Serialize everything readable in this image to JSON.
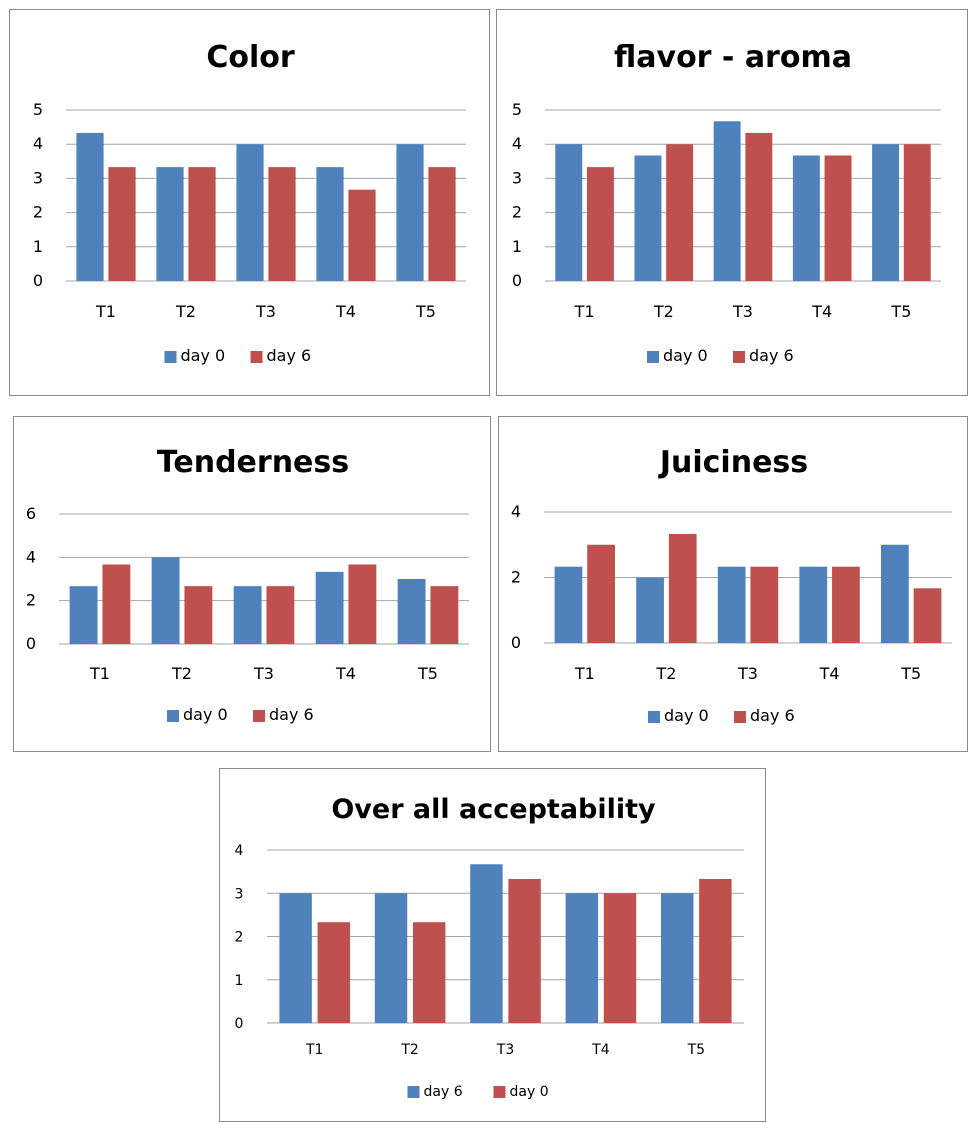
{
  "colors": {
    "blue": "#4F81BD",
    "red": "#C0504D",
    "grid": "#a6a6a6"
  },
  "chart_data": [
    {
      "type": "bar",
      "title": "Color",
      "categories": [
        "T1",
        "T2",
        "T3",
        "T4",
        "T5"
      ],
      "ylim": [
        0,
        5
      ],
      "yticks": [
        "0",
        "1",
        "2",
        "3",
        "4",
        "5"
      ],
      "grid": true,
      "legend": "bottom",
      "series": [
        {
          "name": "day 0",
          "color": "#4F81BD",
          "values": [
            4.33,
            3.33,
            4.0,
            3.33,
            4.0
          ]
        },
        {
          "name": "day 6",
          "color": "#C0504D",
          "values": [
            3.33,
            3.33,
            3.33,
            2.67,
            3.33
          ]
        }
      ]
    },
    {
      "type": "bar",
      "title": "flavor - aroma",
      "categories": [
        "T1",
        "T2",
        "T3",
        "T4",
        "T5"
      ],
      "ylim": [
        0,
        5
      ],
      "yticks": [
        "0",
        "1",
        "2",
        "3",
        "4",
        "5"
      ],
      "grid": true,
      "legend": "bottom",
      "series": [
        {
          "name": "day 0",
          "color": "#4F81BD",
          "values": [
            4.0,
            3.67,
            4.67,
            3.67,
            4.0
          ]
        },
        {
          "name": "day 6",
          "color": "#C0504D",
          "values": [
            3.33,
            4.0,
            4.33,
            3.67,
            4.0
          ]
        }
      ]
    },
    {
      "type": "bar",
      "title": "Tenderness",
      "categories": [
        "T1",
        "T2",
        "T3",
        "T4",
        "T5"
      ],
      "ylim": [
        0,
        6
      ],
      "yticks": [
        "0",
        "2",
        "4",
        "6"
      ],
      "grid": true,
      "legend": "bottom",
      "series": [
        {
          "name": "day 0",
          "color": "#4F81BD",
          "values": [
            2.67,
            4.0,
            2.67,
            3.33,
            3.0
          ]
        },
        {
          "name": "day 6",
          "color": "#C0504D",
          "values": [
            3.67,
            2.67,
            2.67,
            3.67,
            2.67
          ]
        }
      ]
    },
    {
      "type": "bar",
      "title": "Juiciness",
      "categories": [
        "T1",
        "T2",
        "T3",
        "T4",
        "T5"
      ],
      "ylim": [
        0,
        4
      ],
      "yticks": [
        "0",
        "2",
        "4"
      ],
      "grid": true,
      "legend": "bottom",
      "series": [
        {
          "name": "day 0",
          "color": "#4F81BD",
          "values": [
            2.33,
            2.0,
            2.33,
            2.33,
            3.0
          ]
        },
        {
          "name": "day 6",
          "color": "#C0504D",
          "values": [
            3.0,
            3.33,
            2.33,
            2.33,
            1.67
          ]
        }
      ]
    },
    {
      "type": "bar",
      "title": "Over all acceptability",
      "categories": [
        "T1",
        "T2",
        "T3",
        "T4",
        "T5"
      ],
      "ylim": [
        0,
        4
      ],
      "yticks": [
        "0",
        "1",
        "2",
        "3",
        "4"
      ],
      "grid": true,
      "legend": "bottom",
      "series": [
        {
          "name": "day 6",
          "color": "#4F81BD",
          "values": [
            3.0,
            3.0,
            3.67,
            3.0,
            3.0
          ]
        },
        {
          "name": "day 0",
          "color": "#C0504D",
          "values": [
            2.33,
            2.33,
            3.33,
            3.0,
            3.33
          ]
        }
      ]
    }
  ]
}
